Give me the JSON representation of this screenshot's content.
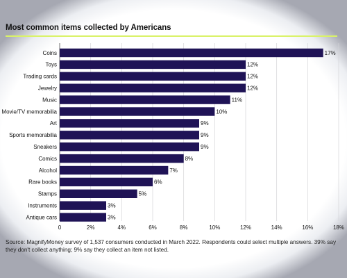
{
  "title": "Most common items collected by Americans",
  "colors": {
    "bar": "#1f1356",
    "accent_rule": "#d9f267",
    "text": "#111111"
  },
  "chart_data": {
    "type": "bar",
    "orientation": "horizontal",
    "title": "Most common items collected by Americans",
    "xlabel": "",
    "ylabel": "",
    "xlim": [
      0,
      18
    ],
    "x_ticks": [
      0,
      2,
      4,
      6,
      8,
      10,
      12,
      14,
      16,
      18
    ],
    "x_tick_labels": [
      "0",
      "2%",
      "4%",
      "6%",
      "8%",
      "10%",
      "12%",
      "14%",
      "16%",
      "18%"
    ],
    "categories": [
      "Coins",
      "Toys",
      "Trading cards",
      "Jewelry",
      "Music",
      "Movie/TV memorabilia",
      "Art",
      "Sports memorabilia",
      "Sneakers",
      "Comics",
      "Alcohol",
      "Rare books",
      "Stamps",
      "Instruments",
      "Antique cars"
    ],
    "values": [
      17,
      12,
      12,
      12,
      11,
      10,
      9,
      9,
      9,
      8,
      7,
      6,
      5,
      3,
      3
    ],
    "value_labels": [
      "17%",
      "12%",
      "12%",
      "12%",
      "11%",
      "10%",
      "9%",
      "9%",
      "9%",
      "8%",
      "7%",
      "6%",
      "5%",
      "3%",
      "3%"
    ],
    "grid": true
  },
  "source": "Source: MagnifyMoney survey of 1,537 consumers conducted in March 2022. Respondents could select multiple answers. 39% say they don't collect anything; 9% say they collect an item not listed."
}
